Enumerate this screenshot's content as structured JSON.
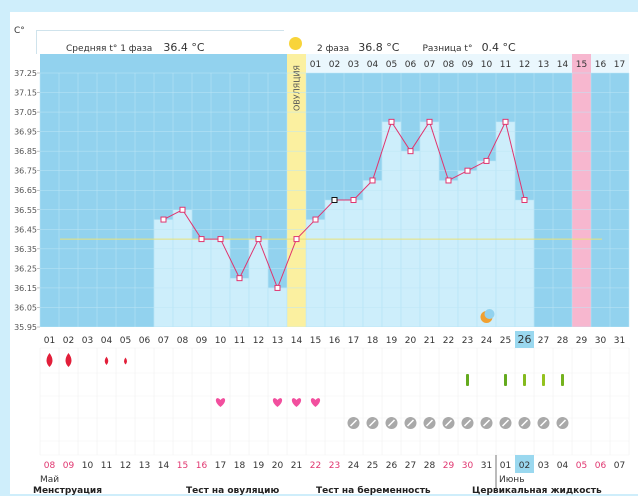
{
  "header": {
    "unit": "C°",
    "phase1_label": "Средняя t° 1 фаза",
    "phase1_value": "36.4 °C",
    "phase2_label": "2 фаза",
    "phase2_value": "36.8 °C",
    "diff_label": "Разница t°",
    "diff_value": "0.4 °C"
  },
  "colors": {
    "plot_bg": "#92d2ee",
    "bar": "#cdeefb",
    "line": "#e0356f",
    "ovulation": "#fbf0a0",
    "period": "#f7b7cf",
    "coverline": "#e8e27a",
    "today": "#9ad8ef"
  },
  "chart_data": {
    "type": "line",
    "ylabel": "C°",
    "ylim": [
      35.95,
      37.25
    ],
    "yticks": [
      "37.25",
      "37.15",
      "37.05",
      "36.95",
      "36.85",
      "36.75",
      "36.65",
      "36.55",
      "36.45",
      "36.35",
      "36.25",
      "36.15",
      "36.05",
      "35.95"
    ],
    "coverline": 36.4,
    "days": [
      1,
      2,
      3,
      4,
      5,
      6,
      7,
      8,
      9,
      10,
      11,
      12,
      13,
      14,
      15,
      16,
      17,
      18,
      19,
      20,
      21,
      22,
      23,
      24,
      25,
      26,
      27,
      28,
      29,
      30,
      31
    ],
    "temps": [
      null,
      null,
      null,
      null,
      null,
      null,
      36.5,
      36.55,
      36.4,
      36.4,
      36.2,
      36.4,
      36.15,
      36.4,
      36.5,
      36.6,
      36.6,
      36.7,
      37.0,
      36.85,
      37.0,
      36.7,
      36.75,
      36.8,
      37.0,
      36.6,
      null,
      null,
      null,
      null,
      null
    ],
    "ovulation_day": 14,
    "period_day": 29,
    "today_day": 26,
    "phase2_days": [
      "01",
      "02",
      "03",
      "04",
      "05",
      "06",
      "07",
      "08",
      "09",
      "10",
      "11",
      "12",
      "13",
      "14",
      "15",
      "16",
      "17"
    ],
    "cycle_days": [
      "01",
      "02",
      "03",
      "04",
      "05",
      "06",
      "07",
      "08",
      "09",
      "10",
      "11",
      "12",
      "13",
      "14",
      "15",
      "16",
      "17",
      "18",
      "19",
      "20",
      "21",
      "22",
      "23",
      "24",
      "25",
      "26",
      "27",
      "28",
      "29",
      "30",
      "31"
    ],
    "date_days": [
      "08",
      "09",
      "10",
      "11",
      "12",
      "13",
      "14",
      "15",
      "16",
      "17",
      "18",
      "19",
      "20",
      "21",
      "22",
      "23",
      "24",
      "25",
      "26",
      "27",
      "28",
      "29",
      "30",
      "31",
      "01",
      "02",
      "03",
      "04",
      "05",
      "06",
      "07"
    ],
    "red_dates": [
      1,
      2,
      8,
      9,
      15,
      16,
      22,
      23,
      29,
      30
    ],
    "menstruation": [
      1,
      1,
      0.6,
      0.5
    ],
    "hearts": [
      10,
      13,
      14,
      15
    ],
    "tests": [
      {
        "day": 23,
        "strength": 1
      },
      {
        "day": 25,
        "strength": 1
      },
      {
        "day": 26,
        "strength": 0.6
      },
      {
        "day": 27,
        "strength": 0.4
      },
      {
        "day": 28,
        "strength": 0.8
      }
    ],
    "pills": [
      17,
      18,
      19,
      20,
      21,
      22,
      23,
      24,
      25,
      26,
      27,
      28
    ],
    "moon_day": 24
  },
  "ovulation_label": "ОВУЛЯЦИЯ",
  "month_may": "Май",
  "month_june": "Июнь",
  "legend": {
    "menstruation": "Менструация",
    "ovulation_test": "Тест на овуляцию",
    "pregnancy_test": "Тест на беременность",
    "cervical": "Цервикальная жидкость"
  }
}
